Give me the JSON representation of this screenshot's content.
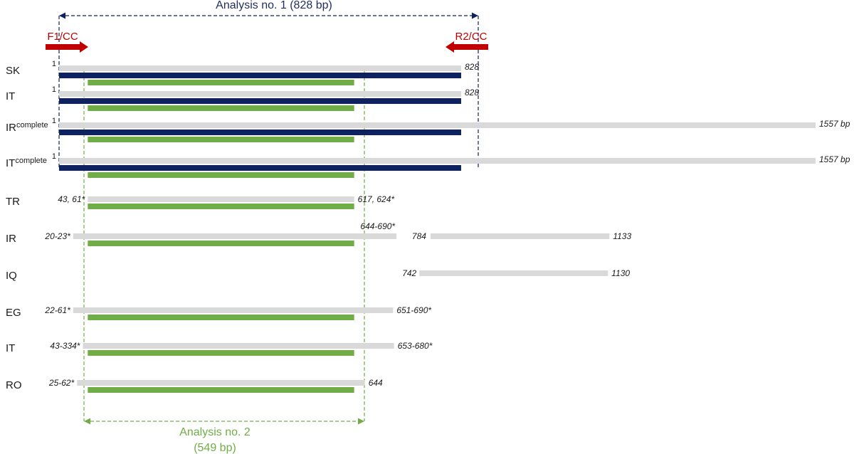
{
  "analysis1": {
    "label": "Analysis no. 1 (828 bp)",
    "start": 1,
    "end": 828
  },
  "analysis2": {
    "label_line1": "Analysis no. 2",
    "label_line2": "(549 bp)",
    "start": 60,
    "end": 608
  },
  "primers": {
    "forward": {
      "label": "F1/CC",
      "color": "#c00000"
    },
    "reverse": {
      "label": "R2/CC",
      "color": "#c00000"
    }
  },
  "colors": {
    "analysis1": "#0f2260",
    "analysis2": "#70ad47",
    "sequence": "#d9d9d9",
    "primer": "#c00000"
  },
  "rows": [
    {
      "label": "SK",
      "start_label": "1",
      "end_label": "828",
      "segments": [
        [
          1,
          828
        ]
      ],
      "analysis1": true,
      "analysis2": true
    },
    {
      "label": "IT",
      "start_label": "1",
      "end_label": "828",
      "segments": [
        [
          1,
          828
        ]
      ],
      "analysis1": true,
      "analysis2": true
    },
    {
      "label": "IR",
      "sup": "complete",
      "start_label": "1",
      "end_label": "1557 bp",
      "segments": [
        [
          1,
          1557
        ]
      ],
      "analysis1": true,
      "analysis2": true
    },
    {
      "label": "IT",
      "sup": "complete",
      "start_label": "1",
      "end_label": "1557 bp",
      "segments": [
        [
          1,
          1557
        ]
      ],
      "analysis1": true,
      "analysis2": true
    },
    {
      "label": "TR",
      "start_label": "43, 61*",
      "end_label": "617, 624*",
      "segments": [
        [
          60,
          608
        ]
      ],
      "analysis1": false,
      "analysis2": true
    },
    {
      "label": "IR",
      "start_label": "20-23*",
      "end_label": "644-690*",
      "mid_label": "784",
      "tail_end_label": "1133",
      "segments": [
        [
          30,
          695
        ],
        [
          765,
          1133
        ]
      ],
      "analysis1": false,
      "analysis2": true
    },
    {
      "label": "IQ",
      "start_label": "742",
      "end_label": "1130",
      "segments": [
        [
          742,
          1130
        ]
      ],
      "analysis1": false,
      "analysis2": false
    },
    {
      "label": "EG",
      "start_label": "22-61*",
      "end_label": "651-690*",
      "segments": [
        [
          30,
          688
        ]
      ],
      "analysis1": false,
      "analysis2": true
    },
    {
      "label": "IT",
      "start_label": "43-334*",
      "end_label": "653-680*",
      "segments": [
        [
          50,
          690
        ]
      ],
      "analysis1": false,
      "analysis2": true
    },
    {
      "label": "RO",
      "start_label": "25-62*",
      "end_label": "644",
      "segments": [
        [
          38,
          630
        ]
      ],
      "analysis1": false,
      "analysis2": true
    }
  ]
}
